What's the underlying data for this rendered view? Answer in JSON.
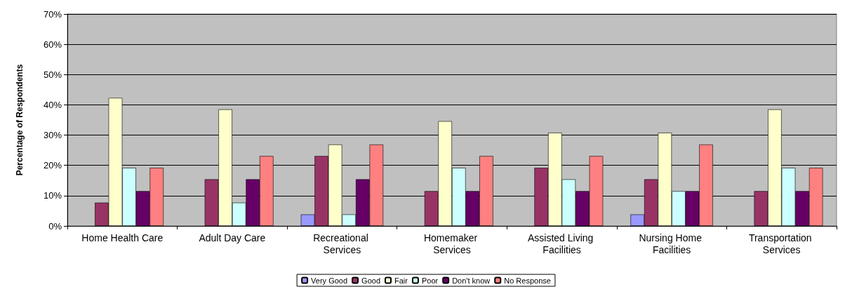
{
  "chart_data": {
    "type": "bar",
    "ylabel": "Percentage of Respondents",
    "categories": [
      "Home Health Care",
      "Adult Day Care",
      "Recreational Services",
      "Homemaker Services",
      "Assisted Living Facilities",
      "Nursing Home Facilities",
      "Transportation Services"
    ],
    "series": [
      {
        "name": "Very Good",
        "color": "#9999ff",
        "values": [
          null,
          null,
          3.8,
          null,
          null,
          3.8,
          null
        ]
      },
      {
        "name": "Good",
        "color": "#993366",
        "values": [
          7.7,
          15.4,
          23.1,
          11.5,
          19.2,
          15.4,
          11.5
        ]
      },
      {
        "name": "Fair",
        "color": "#ffffcc",
        "values": [
          42.3,
          38.5,
          26.9,
          34.6,
          30.8,
          30.8,
          38.5
        ]
      },
      {
        "name": "Poor",
        "color": "#ccffff",
        "values": [
          19.2,
          7.7,
          3.8,
          19.2,
          15.4,
          11.5,
          19.2
        ]
      },
      {
        "name": "Don't know",
        "color": "#660066",
        "values": [
          11.5,
          15.4,
          15.4,
          11.5,
          11.5,
          11.5,
          11.5
        ]
      },
      {
        "name": "No Response",
        "color": "#ff8080",
        "values": [
          19.2,
          23.1,
          26.9,
          23.1,
          23.1,
          26.9,
          19.2
        ]
      }
    ],
    "ylim": [
      0,
      70
    ],
    "yticks": [
      {
        "value": 0,
        "label": "0%"
      },
      {
        "value": 10,
        "label": "10%"
      },
      {
        "value": 20,
        "label": "20%"
      },
      {
        "value": 30,
        "label": "30%"
      },
      {
        "value": 40,
        "label": "40%"
      },
      {
        "value": 50,
        "label": "50%"
      },
      {
        "value": 60,
        "label": "60%"
      },
      {
        "value": 70,
        "label": "70%"
      }
    ],
    "grid": "y",
    "legend": "bottom"
  }
}
